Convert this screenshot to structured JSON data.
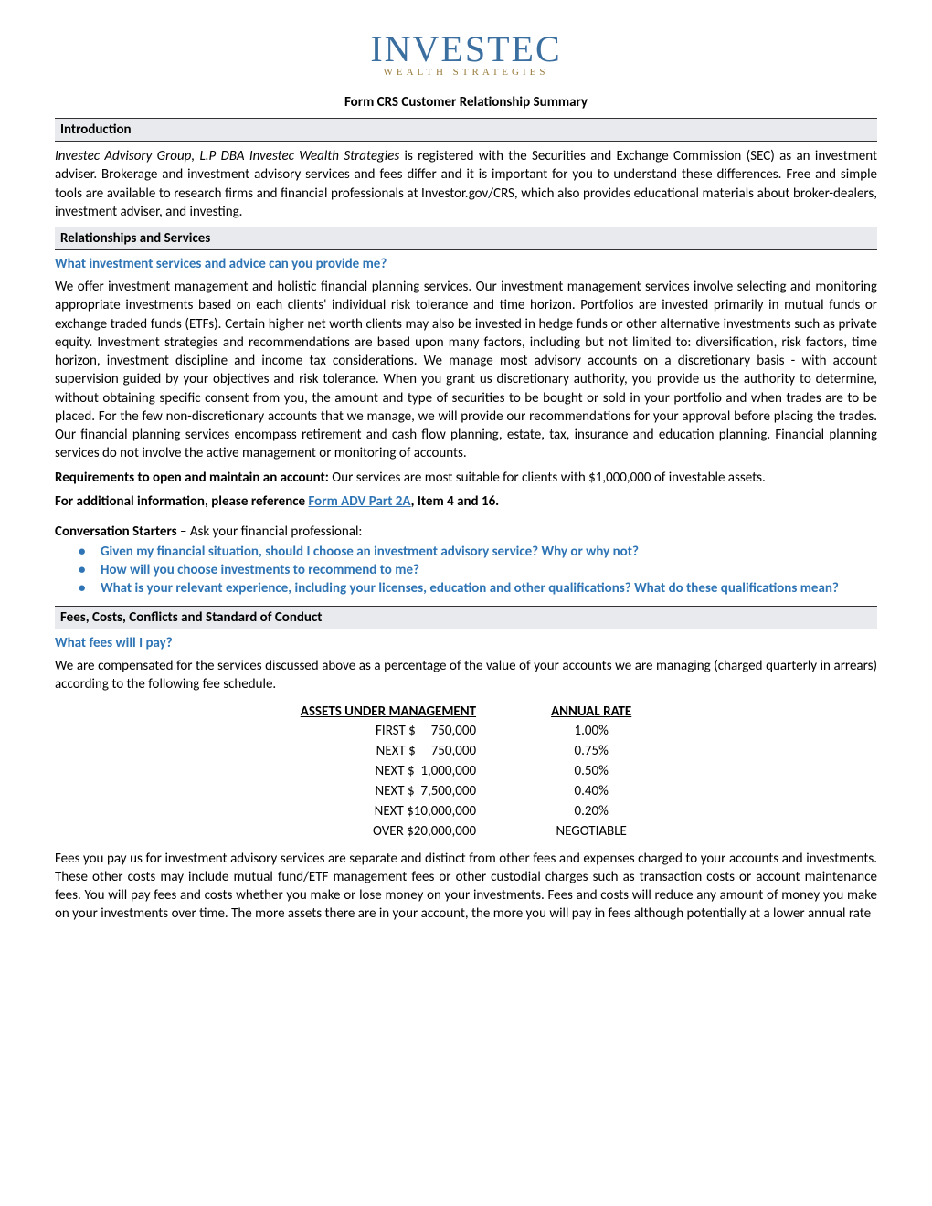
{
  "logo": {
    "main": "INVESTEC",
    "sub": "WEALTH STRATEGIES"
  },
  "doc_title": "Form CRS Customer Relationship Summary",
  "sections": {
    "intro": {
      "header": "Introduction",
      "lead_italic": "Investec Advisory Group, L.P DBA Investec Wealth Strategies",
      "lead_rest": " is registered with the Securities and Exchange Commission (SEC) as an investment adviser. Brokerage and investment advisory services and fees differ and it is important for you to understand these differences. Free and simple tools are available to research firms and financial professionals at Investor.gov/CRS, which also provides educational materials about broker-dealers, investment adviser, and investing."
    },
    "relationships": {
      "header": "Relationships and Services",
      "question": "What investment services and advice can you provide me?",
      "body": "We offer investment management and holistic financial planning services. Our investment management services involve selecting and monitoring appropriate investments based on each clients' individual risk tolerance and time horizon. Portfolios are invested primarily in mutual funds or exchange traded funds (ETFs). Certain higher net worth clients may also be invested in hedge funds or other alternative investments such as private equity. Investment strategies and recommendations are based upon many factors, including but not limited to: diversification, risk factors, time horizon, investment discipline and income tax considerations. We manage most advisory accounts on a discretionary basis - with account supervision guided by your objectives and risk tolerance. When you grant us discretionary authority, you provide us the authority to determine, without obtaining specific consent from you, the amount and type of securities to be bought or sold in your portfolio and when trades are to be placed. For the few non-discretionary accounts that we manage, we will provide our recommendations for your approval before placing the trades. Our financial planning services encompass retirement and cash flow planning, estate, tax, insurance and education planning. Financial planning services do not involve the active management or monitoring of accounts.",
      "req_label": "Requirements to open and maintain an account:",
      "req_text": " Our services are most suitable for clients with $1,000,000 of investable assets.",
      "addl_label": "For additional information, please reference ",
      "addl_link": "Form ADV Part 2A",
      "addl_suffix": ", Item 4 and 16.",
      "conv_label": "Conversation Starters",
      "conv_suffix": " – Ask your financial professional:",
      "conv_items": [
        "Given my financial situation, should I choose an investment advisory service? Why or why not?",
        "How will you choose investments to recommend to me?",
        "What is your relevant experience, including your licenses, education and other qualifications? What do these qualifications mean?"
      ]
    },
    "fees": {
      "header": "Fees, Costs, Conflicts and Standard of Conduct",
      "question": "What fees will I pay?",
      "intro": "We are compensated for the services discussed above as a percentage of the value of your accounts we are managing (charged quarterly in arrears) according to the following fee schedule.",
      "table": {
        "col1": "ASSETS UNDER MANAGEMENT",
        "col2": "ANNUAL RATE",
        "rows": [
          {
            "aum": "FIRST $     750,000",
            "rate": "1.00%"
          },
          {
            "aum": "NEXT $     750,000",
            "rate": "0.75%"
          },
          {
            "aum": "NEXT $  1,000,000",
            "rate": "0.50%"
          },
          {
            "aum": "NEXT $  7,500,000",
            "rate": "0.40%"
          },
          {
            "aum": "NEXT $10,000,000",
            "rate": "0.20%"
          },
          {
            "aum": "OVER $20,000,000",
            "rate": "NEGOTIABLE"
          }
        ]
      },
      "outro": "Fees you pay us for investment advisory services are separate and distinct from other fees and expenses charged to your accounts and investments. These other costs may include mutual fund/ETF management fees or other custodial charges such as transaction costs or account maintenance fees. You will pay fees and costs whether you make or lose money on your investments. Fees and costs will reduce any amount of money you make on your investments over time. The more assets there are in your account, the more you will pay in fees although potentially at a lower annual rate"
    }
  }
}
